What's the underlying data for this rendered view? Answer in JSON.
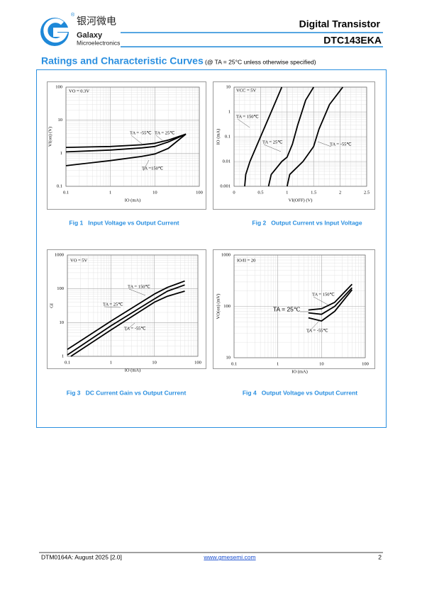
{
  "header": {
    "logo_cn": "银河微电",
    "logo_en1": "Galaxy",
    "logo_en2": "Microelectronics",
    "registered": "®",
    "category": "Digital Transistor",
    "part": "DTC143EKA"
  },
  "section": {
    "title": "Ratings and Characteristic Curves",
    "condition": "(@ TA = 25°C unless otherwise specified)"
  },
  "chart_data": [
    {
      "type": "line",
      "caption": "Fig 1   Input Voltage vs Output Current",
      "annotation": "VO = 0.3V",
      "x_label": "IO  (mA)",
      "y_label": "VI(on)  (V)",
      "log_x": true,
      "log_y": true,
      "grid": true,
      "xlim": [
        0.1,
        100
      ],
      "xticks": [
        0.1,
        1,
        10,
        100
      ],
      "ylim": [
        0.1,
        100
      ],
      "yticks": [
        0.1,
        1,
        10,
        100
      ],
      "series": [
        {
          "name": "TA = -55℃",
          "color": "#000000",
          "x": [
            0.1,
            1,
            5,
            10,
            20,
            50
          ],
          "values": [
            1.5,
            1.6,
            1.8,
            2.0,
            2.5,
            3.8
          ]
        },
        {
          "name": "TA = 25℃",
          "color": "#000000",
          "x": [
            0.1,
            1,
            5,
            10,
            20,
            50
          ],
          "values": [
            1.1,
            1.25,
            1.45,
            1.6,
            2.2,
            3.8
          ]
        },
        {
          "name": "TA =150℃",
          "color": "#000000",
          "x": [
            0.1,
            1,
            5,
            10,
            20,
            50
          ],
          "values": [
            0.42,
            0.6,
            0.8,
            0.95,
            1.4,
            3.8
          ]
        }
      ]
    },
    {
      "type": "line",
      "caption": "Fig 2   Output Current vs Input Voltage",
      "annotation": "VCC = 5V",
      "x_label": "VI(OFF)  (V)",
      "y_label": "IO  (mA)",
      "log_x": false,
      "log_y": true,
      "grid": true,
      "xlim": [
        0,
        2.5
      ],
      "xticks": [
        0,
        0.5,
        1,
        1.5,
        2,
        2.5
      ],
      "ylim": [
        0.001,
        10
      ],
      "yticks": [
        0.001,
        0.01,
        0.1,
        1,
        10
      ],
      "series": [
        {
          "name": "TA = 150℃",
          "color": "#000000",
          "x": [
            0.2,
            0.22,
            0.3,
            0.5,
            0.7,
            0.9
          ],
          "values": [
            0.001,
            0.003,
            0.01,
            0.1,
            1,
            10
          ]
        },
        {
          "name": "TA = 25℃",
          "color": "#000000",
          "x": [
            0.65,
            0.7,
            0.9,
            1.0,
            1.1,
            1.2,
            1.35,
            1.5
          ],
          "values": [
            0.001,
            0.003,
            0.01,
            0.015,
            0.05,
            0.3,
            3,
            10
          ]
        },
        {
          "name": "TA = -55℃",
          "color": "#000000",
          "x": [
            1.0,
            1.05,
            1.3,
            1.5,
            1.6,
            1.8,
            2.05
          ],
          "values": [
            0.001,
            0.003,
            0.01,
            0.04,
            0.2,
            2,
            10
          ]
        }
      ]
    },
    {
      "type": "line",
      "caption": "Fig 3   DC Current Gain vs Output Current",
      "annotation": "VO = 5V",
      "x_label": "IO  (mA)",
      "y_label": "GI",
      "log_x": true,
      "log_y": true,
      "grid": true,
      "xlim": [
        0.1,
        100
      ],
      "xticks": [
        0.1,
        1,
        10,
        100
      ],
      "ylim": [
        1,
        1000
      ],
      "yticks": [
        1,
        10,
        100,
        1000
      ],
      "series": [
        {
          "name": "TA = 150℃",
          "color": "#000000",
          "x": [
            0.1,
            1,
            10,
            20,
            50
          ],
          "values": [
            1.6,
            11,
            70,
            110,
            170
          ]
        },
        {
          "name": "TA = 25℃",
          "color": "#000000",
          "x": [
            0.1,
            1,
            10,
            20,
            50
          ],
          "values": [
            1.1,
            8,
            50,
            85,
            130
          ]
        },
        {
          "name": "TA = -55℃",
          "color": "#000000",
          "x": [
            0.12,
            1,
            10,
            20,
            50
          ],
          "values": [
            1,
            6,
            40,
            60,
            85
          ]
        }
      ]
    },
    {
      "type": "line",
      "caption": "Fig 4   Output Voltage vs Output Current",
      "annotation": "IO/II = 20",
      "x_label": "IO  (mA)",
      "y_label": "VO(on)  (mV)",
      "log_x": true,
      "log_y": true,
      "grid": true,
      "xlim": [
        0.1,
        100
      ],
      "xticks": [
        0.1,
        1,
        10,
        100
      ],
      "ylim": [
        10,
        1000
      ],
      "yticks": [
        10,
        100,
        1000
      ],
      "series": [
        {
          "name": "TA = 150℃",
          "color": "#000000",
          "x": [
            5,
            10,
            20,
            50
          ],
          "values": [
            85,
            90,
            120,
            270
          ]
        },
        {
          "name": "TA = 25℃",
          "color": "#000000",
          "x": [
            5,
            10,
            20,
            50
          ],
          "values": [
            75,
            70,
            100,
            230
          ]
        },
        {
          "name": "TA = -55℃",
          "color": "#000000",
          "x": [
            5,
            10,
            20,
            50
          ],
          "values": [
            60,
            52,
            80,
            210
          ]
        }
      ]
    }
  ],
  "footer": {
    "doc": "DTM0164A: August 2025 [2.0]",
    "url": "www.gmesemi.com",
    "page": "2"
  }
}
